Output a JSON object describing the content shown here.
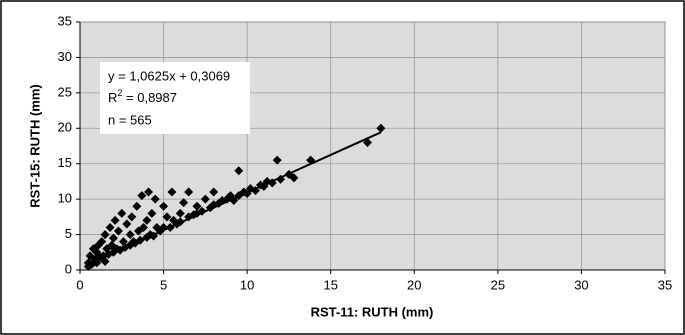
{
  "chart_data": {
    "type": "scatter",
    "xlabel": "RST-11: RUTH (mm)",
    "ylabel": "RST-15: RUTH (mm)",
    "xlim": [
      0,
      35
    ],
    "ylim": [
      0,
      35
    ],
    "xticks": [
      0,
      5,
      10,
      15,
      20,
      25,
      30,
      35
    ],
    "yticks": [
      0,
      5,
      10,
      15,
      20,
      25,
      30,
      35
    ],
    "grid": true,
    "color": "#000000",
    "annotation": {
      "equation": "y = 1,0625x + 0,3069",
      "r2_base": "R",
      "r2_sup": "2",
      "r2_rest": " = 0,8987",
      "n": "n = 565"
    },
    "trendline": {
      "x": [
        0.5,
        18
      ],
      "y": [
        0.84,
        19.43
      ]
    },
    "x": [
      0.5,
      0.5,
      0.6,
      0.7,
      0.8,
      0.9,
      1,
      1,
      1.1,
      1.2,
      1.3,
      1.4,
      1.5,
      1.5,
      1.6,
      1.7,
      1.8,
      1.9,
      2,
      2,
      2.1,
      2.2,
      2.3,
      2.4,
      2.5,
      2.6,
      2.7,
      2.8,
      3,
      3,
      3.1,
      3.2,
      3.3,
      3.4,
      3.5,
      3.6,
      3.7,
      3.8,
      4,
      4,
      4.1,
      4.2,
      4.3,
      4.4,
      4.5,
      4.6,
      4.8,
      5,
      5,
      5.2,
      5.4,
      5.5,
      5.6,
      5.8,
      6,
      6,
      6.2,
      6.5,
      6.5,
      6.8,
      7,
      7,
      7.3,
      7.5,
      7.8,
      8,
      8,
      8.3,
      8.5,
      8.8,
      9,
      9.2,
      9.5,
      9.5,
      9.8,
      10,
      10.2,
      10.5,
      10.8,
      11,
      11.2,
      11.5,
      11.8,
      12,
      12.5,
      12.8,
      13.8,
      17.2,
      18
    ],
    "values": [
      0.5,
      1,
      2,
      0.8,
      3,
      1.5,
      2.5,
      1,
      3.5,
      1.8,
      4,
      2,
      5,
      1.2,
      3,
      2.2,
      6,
      3.5,
      2.5,
      4.5,
      7,
      3,
      5.5,
      2.8,
      8,
      4,
      3.2,
      6.5,
      3.5,
      5,
      7.5,
      4,
      3.8,
      9,
      5.5,
      4.2,
      10.5,
      6,
      4.6,
      7,
      11,
      5,
      8,
      4.8,
      10,
      6,
      5.5,
      9,
      6,
      7.5,
      6,
      11,
      7,
      6.5,
      8,
      6.8,
      9.5,
      7.5,
      11,
      7.8,
      9,
      8,
      8.3,
      10,
      8.8,
      9.2,
      11,
      9.4,
      9.8,
      10,
      10.5,
      9.8,
      14,
      10.5,
      11,
      10.8,
      11.5,
      11.2,
      12,
      11.8,
      12.5,
      12.3,
      15.5,
      12.8,
      13.5,
      13,
      15.5,
      18,
      20
    ]
  }
}
